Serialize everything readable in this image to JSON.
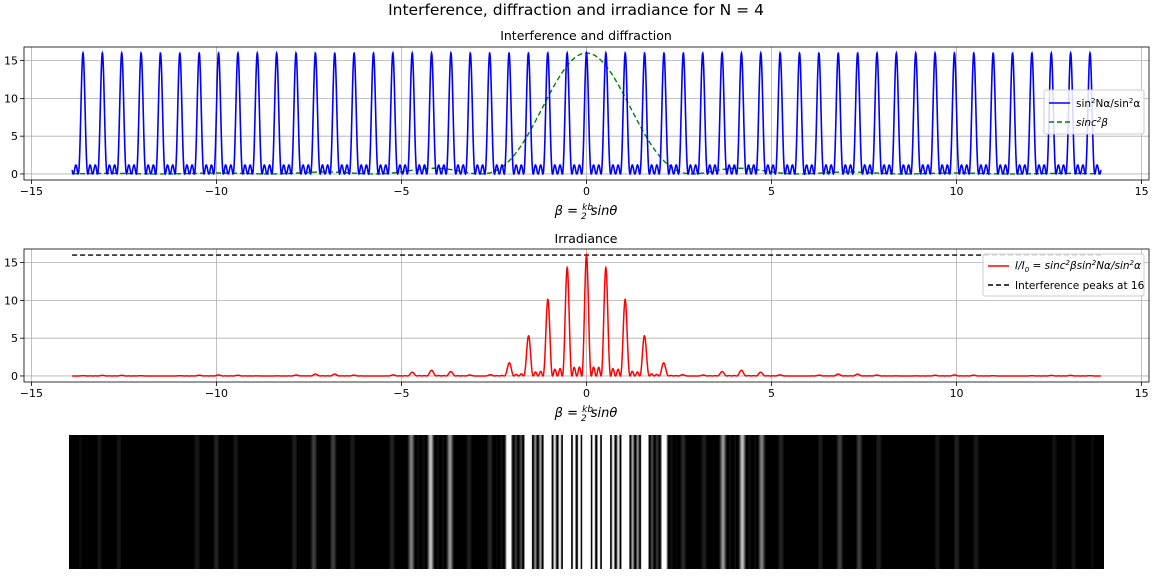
{
  "figure": {
    "suptitle": "Interference, diffraction and irradiance for N = 4"
  },
  "chart_data": [
    {
      "type": "line",
      "title": "Interference and diffraction",
      "xlabel": "β = (kb/2) sinθ",
      "ylabel": "",
      "xlim": [
        -15.2,
        15.2
      ],
      "ylim": [
        -0.8,
        16.8
      ],
      "x_range": [
        -13.9,
        13.9
      ],
      "xticks": [
        -15,
        -10,
        -5,
        0,
        5,
        10,
        15
      ],
      "yticks": [
        0,
        5,
        10,
        15
      ],
      "grid": true,
      "legend_position": "right",
      "params": {
        "N": 4,
        "interference_period": 0.5233,
        "diffraction_zeros": [
          -2.87,
          2.87
        ]
      },
      "series": [
        {
          "name": "sin²Nα/sin²α",
          "function": "sin^2(N*alpha)/sin^2(alpha)",
          "color": "#0000ff",
          "style": "solid",
          "peak_value": 16,
          "secondary_maxima": 1.1,
          "sample_points": [
            [
              -13.6,
              16
            ],
            [
              -0.52,
              16
            ],
            [
              0,
              16
            ],
            [
              0.52,
              16
            ],
            [
              13.6,
              16
            ]
          ]
        },
        {
          "name": "sinc²β",
          "function": "16*sinc^2(beta)",
          "color": "#008000",
          "style": "dashed",
          "peak_value": 16,
          "sample_points": [
            [
              -2.87,
              0
            ],
            [
              -2,
              5.8
            ],
            [
              -1,
              10.3
            ],
            [
              0,
              16
            ],
            [
              1,
              10.3
            ],
            [
              2,
              5.8
            ],
            [
              2.87,
              0
            ]
          ]
        }
      ]
    },
    {
      "type": "line",
      "title": "Irradiance",
      "xlabel": "β = (kb/2) sinθ",
      "ylabel": "",
      "xlim": [
        -15.2,
        15.2
      ],
      "ylim": [
        -0.8,
        16.8
      ],
      "x_range": [
        -13.9,
        13.9
      ],
      "xticks": [
        -15,
        -10,
        -5,
        0,
        5,
        10,
        15
      ],
      "yticks": [
        0,
        5,
        10,
        15
      ],
      "grid": true,
      "legend_position": "top-right",
      "series": [
        {
          "name": "I/I₀ = sinc²β sin²Nα/sin²α",
          "function": "sinc^2(beta)*sin^2(N*alpha)/sin^2(alpha)",
          "color": "#ff0000",
          "style": "solid",
          "peaks": [
            [
              0,
              16
            ],
            [
              -0.52,
              14.6
            ],
            [
              0.52,
              14.6
            ],
            [
              -1.05,
              10.9
            ],
            [
              1.05,
              10.9
            ],
            [
              -1.57,
              6.6
            ],
            [
              1.57,
              6.6
            ],
            [
              -2.09,
              2.8
            ],
            [
              2.09,
              2.8
            ],
            [
              -2.62,
              0.55
            ],
            [
              2.62,
              0.55
            ],
            [
              -4.19,
              0.7
            ],
            [
              4.19,
              0.7
            ],
            [
              -4.71,
              0.7
            ],
            [
              4.71,
              0.7
            ]
          ]
        },
        {
          "name": "Interference peaks at 16",
          "value": 16,
          "color": "#000000",
          "style": "dashed"
        }
      ]
    },
    {
      "type": "heatmap",
      "title": "",
      "colormap": "gray",
      "description_values": "irradiance pattern as vertical intensity bands",
      "x_range": [
        -13.9,
        13.9
      ],
      "clip_max": 1.0
    }
  ]
}
